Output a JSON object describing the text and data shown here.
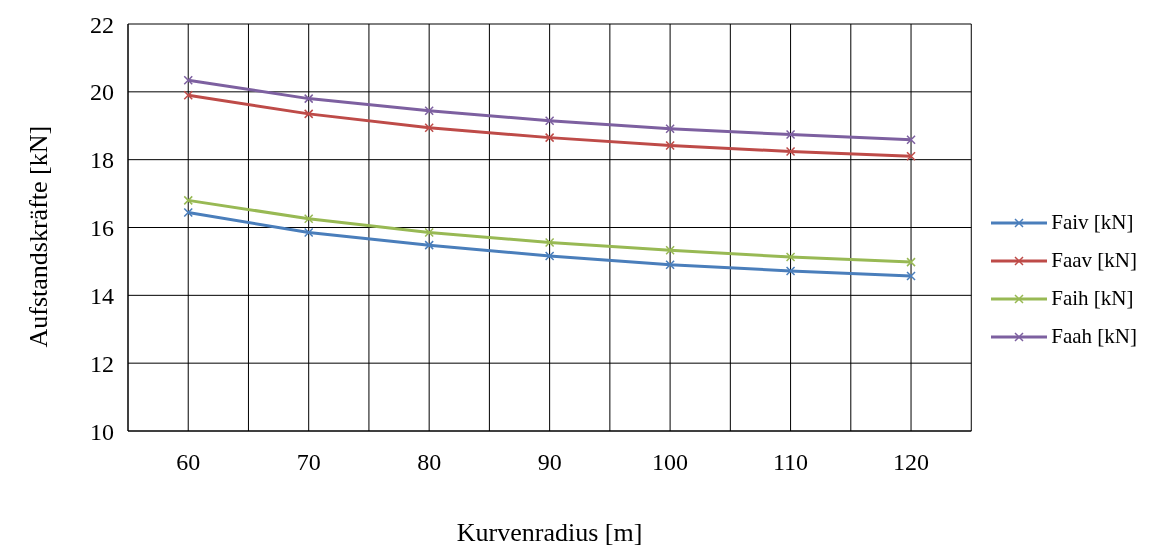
{
  "chart_data": {
    "type": "line",
    "xlabel": "Kurvenradius [m]",
    "ylabel": "Aufstandskräfte [kN]",
    "x": [
      60,
      70,
      80,
      90,
      100,
      110,
      120
    ],
    "series": [
      {
        "name": "Faiv [kN]",
        "color": "#4a7ebb",
        "values": [
          16.44,
          15.85,
          15.48,
          15.16,
          14.9,
          14.72,
          14.57
        ]
      },
      {
        "name": "Faav [kN]",
        "color": "#be4b48",
        "values": [
          19.9,
          19.35,
          18.94,
          18.65,
          18.42,
          18.24,
          18.1
        ]
      },
      {
        "name": "Faih [kN]",
        "color": "#98b954",
        "values": [
          16.8,
          16.26,
          15.85,
          15.56,
          15.33,
          15.13,
          14.98
        ]
      },
      {
        "name": "Faah [kN]",
        "color": "#7d60a0",
        "values": [
          20.34,
          19.8,
          19.44,
          19.15,
          18.91,
          18.74,
          18.59
        ]
      }
    ],
    "xlim": [
      55,
      125
    ],
    "xticks": [
      {
        "value": 55,
        "label": null
      },
      60,
      {
        "value": 65,
        "label": null
      },
      70,
      {
        "value": 75,
        "label": null
      },
      80,
      {
        "value": 85,
        "label": null
      },
      90,
      {
        "value": 95,
        "label": null
      },
      100,
      {
        "value": 105,
        "label": null
      },
      110,
      {
        "value": 115,
        "label": null
      },
      120,
      {
        "value": 125,
        "label": null
      }
    ],
    "ylim": [
      10,
      22
    ],
    "yticks": [
      10,
      12,
      14,
      16,
      18,
      20,
      22
    ],
    "grid": true,
    "legend": "right",
    "marker": "cross",
    "line_style": "solid"
  }
}
